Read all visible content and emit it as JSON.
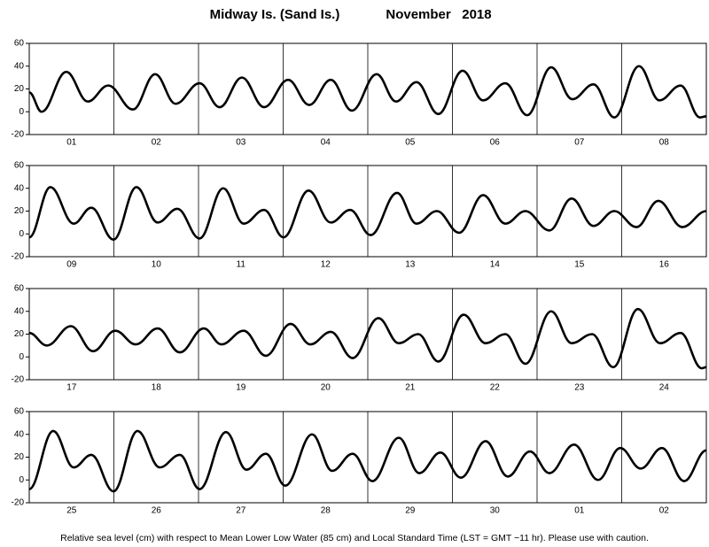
{
  "header": {
    "title": "Midway Is. (Sand Is.)",
    "date": "November   2018"
  },
  "note": "Relative sea level (cm) with respect to Mean Lower Low Water (85 cm) and Local Standard Time (LST = GMT −11 hr). Please use with caution.",
  "chart_data": [
    {
      "type": "line",
      "categories": [
        "01",
        "02",
        "03",
        "04",
        "05",
        "06",
        "07",
        "08"
      ],
      "color": "#000000",
      "xlim": [
        0,
        192
      ],
      "ylim": [
        -20,
        60
      ],
      "yticks": [
        -20,
        0,
        20,
        40,
        60
      ],
      "grid": false,
      "x": [
        0,
        3.5,
        10.5,
        16.6,
        22.4,
        29.4,
        35.7,
        41.5,
        48.3,
        54,
        60.3,
        66.6,
        73.4,
        79.4,
        85.5,
        91.5,
        98.5,
        104,
        109.8,
        116,
        122.9,
        128.7,
        135,
        141.2,
        148,
        154,
        160,
        165.9,
        172.9,
        178.7,
        184.7,
        190.2,
        192
      ],
      "values": [
        17,
        0,
        35,
        9,
        23,
        2,
        33,
        7,
        25,
        4,
        30,
        4,
        28,
        6,
        28,
        1,
        33,
        9,
        26,
        -2,
        36,
        10,
        25,
        -3,
        39,
        11,
        24,
        -5,
        40,
        10,
        23,
        -5,
        -4
      ]
    },
    {
      "type": "line",
      "categories": [
        "09",
        "10",
        "11",
        "12",
        "13",
        "14",
        "15",
        "16"
      ],
      "color": "#000000",
      "xlim": [
        0,
        192
      ],
      "ylim": [
        -20,
        60
      ],
      "yticks": [
        -20,
        0,
        20,
        40,
        60
      ],
      "grid": false,
      "x": [
        0,
        6,
        12.6,
        17.6,
        23.9,
        30.4,
        36.4,
        42,
        48.3,
        55,
        60.8,
        66.6,
        72.1,
        79.2,
        85.5,
        91,
        96.8,
        104.3,
        109.8,
        115.6,
        121.9,
        128.7,
        135,
        140.7,
        147.5,
        153.8,
        160,
        165.9,
        172.2,
        178.4,
        185.2,
        192
      ],
      "values": [
        -3,
        41,
        9,
        23,
        -5,
        41,
        10,
        22,
        -4,
        40,
        9,
        21,
        -3,
        38,
        10,
        21,
        -1,
        36,
        9,
        20,
        1,
        34,
        9,
        20,
        3,
        31,
        7,
        20,
        6,
        29,
        6,
        20
      ]
    },
    {
      "type": "line",
      "categories": [
        "17",
        "18",
        "19",
        "20",
        "21",
        "22",
        "23",
        "24"
      ],
      "color": "#000000",
      "xlim": [
        0,
        192
      ],
      "ylim": [
        -20,
        60
      ],
      "yticks": [
        -20,
        0,
        20,
        40,
        60
      ],
      "grid": false,
      "x": [
        0,
        5,
        11.8,
        18.1,
        24.4,
        30.2,
        36.4,
        42.7,
        49.5,
        54.5,
        60.8,
        67.1,
        74.1,
        79.7,
        85.5,
        91.7,
        99,
        104.8,
        110.3,
        116,
        123.2,
        129.4,
        135,
        140.7,
        148,
        153.8,
        159.6,
        165.6,
        172.6,
        178.9,
        184.7,
        190.7,
        192
      ],
      "values": [
        21,
        10,
        27,
        5,
        23,
        11,
        25,
        4,
        25,
        11,
        23,
        1,
        29,
        11,
        22,
        -1,
        34,
        12,
        20,
        -4,
        37,
        12,
        20,
        -6,
        40,
        12,
        20,
        -9,
        42,
        12,
        21,
        -10,
        -9
      ]
    },
    {
      "type": "line",
      "categories": [
        "25",
        "26",
        "27",
        "28",
        "29",
        "30",
        "01",
        "02"
      ],
      "color": "#000000",
      "xlim": [
        0,
        192
      ],
      "ylim": [
        -20,
        60
      ],
      "yticks": [
        -20,
        0,
        20,
        40,
        60
      ],
      "grid": false,
      "x": [
        0,
        6.8,
        12.6,
        17.6,
        23.9,
        30.7,
        37,
        42.7,
        48.3,
        55.8,
        61.6,
        67.1,
        72.6,
        80.2,
        85.9,
        91.7,
        97.3,
        104.8,
        110.6,
        116.6,
        122.4,
        129.4,
        135.7,
        142,
        147.5,
        154.5,
        161.3,
        167.6,
        173.4,
        179.4,
        185.7,
        192
      ],
      "values": [
        -8,
        43,
        11,
        22,
        -10,
        43,
        11,
        22,
        -8,
        42,
        9,
        23,
        -5,
        40,
        8,
        23,
        -1,
        37,
        6,
        24,
        2,
        34,
        3,
        25,
        6,
        31,
        0,
        28,
        10,
        28,
        -1,
        26
      ]
    }
  ]
}
